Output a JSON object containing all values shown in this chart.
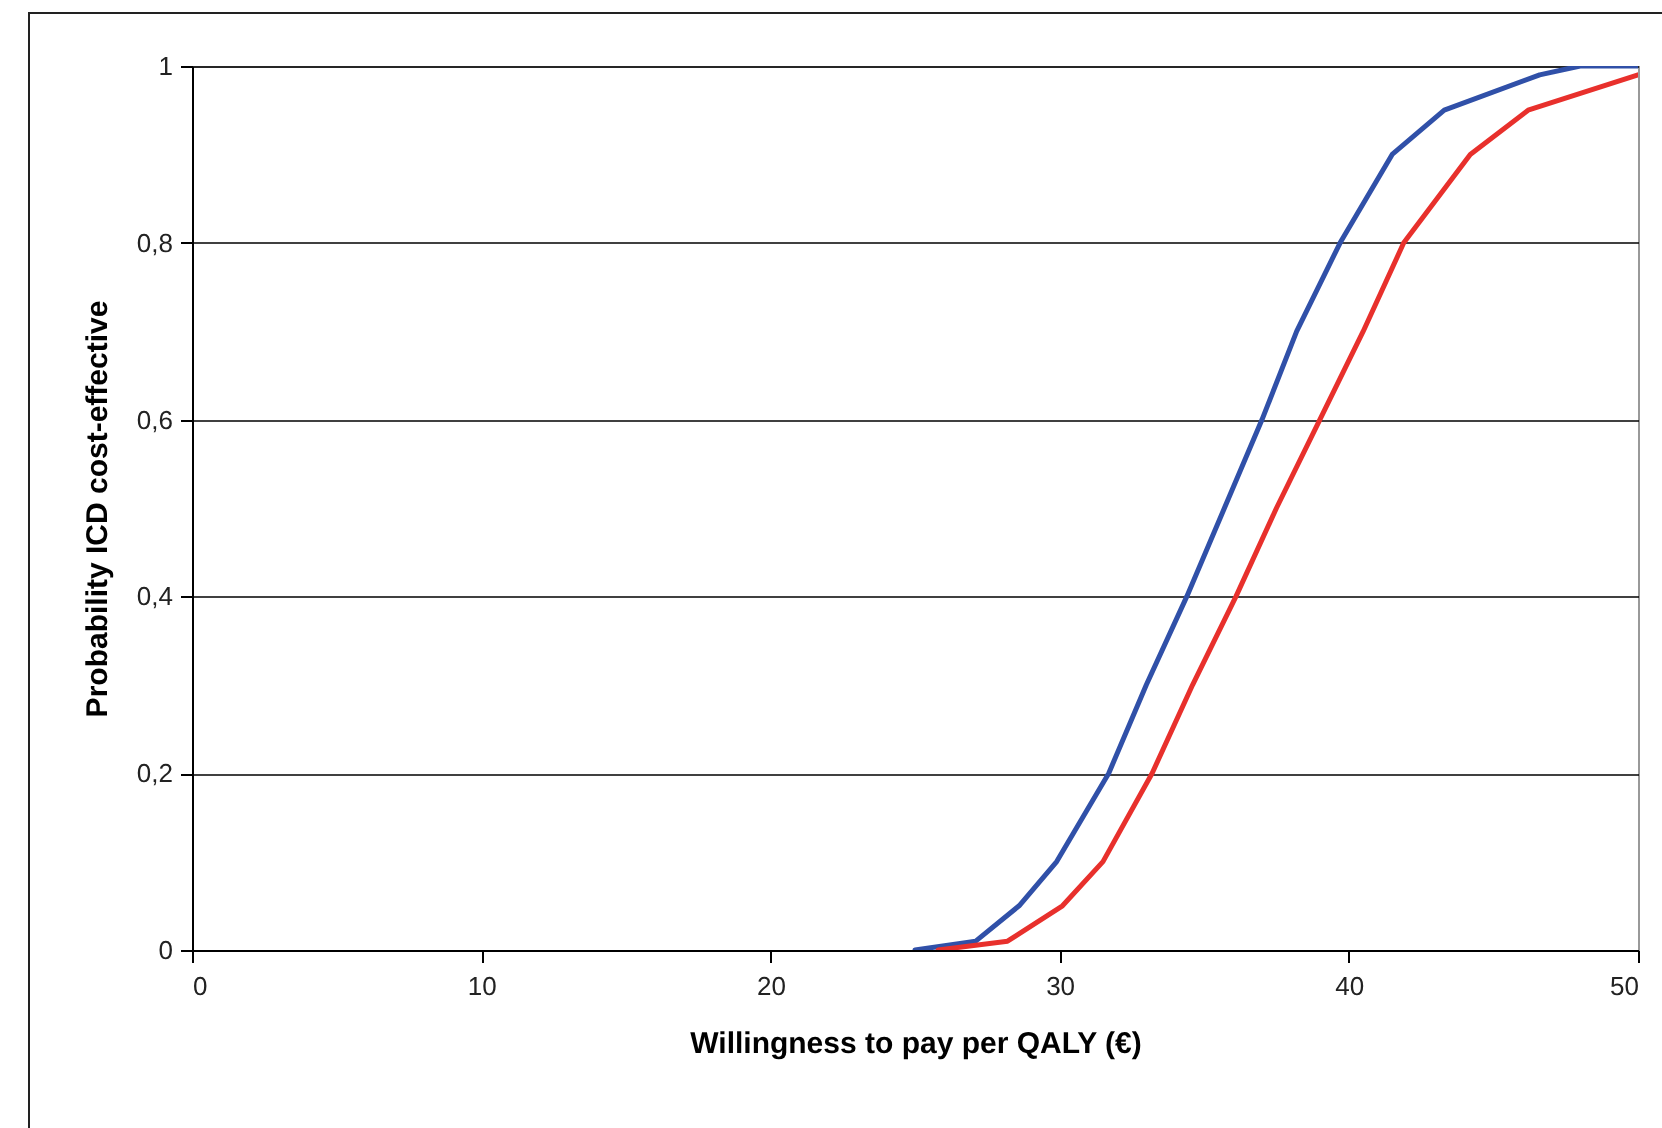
{
  "chart_data": {
    "type": "line",
    "xlabel": "Willingness to pay per QALY (€)",
    "ylabel": "Probability ICD cost-effective",
    "xlim": [
      0,
      50
    ],
    "xticks": [
      0,
      10,
      20,
      30,
      40,
      50
    ],
    "ylim": [
      0,
      1
    ],
    "yticks": [
      0,
      {
        "value": 0.2,
        "label": "0,2"
      },
      {
        "value": 0.4,
        "label": "0,4"
      },
      {
        "value": 0.6,
        "label": "0,6"
      },
      {
        "value": 0.8,
        "label": "0,8"
      },
      1
    ],
    "grid": "y",
    "marker": "none",
    "line_style": "solid",
    "series": [
      {
        "color": "#3050a8",
        "x": [
          25,
          27.1,
          28.6,
          29.9,
          31.7,
          33.0,
          34.4,
          35.7,
          37.0,
          38.2,
          39.7,
          41.5,
          43.3,
          46.6,
          48,
          50
        ],
        "values": [
          0,
          0.01,
          0.05,
          0.1,
          0.2,
          0.3,
          0.4,
          0.5,
          0.6,
          0.7,
          0.8,
          0.9,
          0.95,
          0.99,
          1,
          1
        ]
      },
      {
        "color": "#e8302c",
        "x": [
          25.8,
          28.2,
          30.1,
          31.5,
          33.2,
          34.6,
          36.1,
          37.5,
          39.0,
          40.5,
          41.9,
          44.2,
          46.2,
          50
        ],
        "values": [
          0,
          0.01,
          0.05,
          0.1,
          0.2,
          0.3,
          0.4,
          0.5,
          0.6,
          0.7,
          0.8,
          0.9,
          0.95,
          0.99
        ]
      }
    ]
  }
}
